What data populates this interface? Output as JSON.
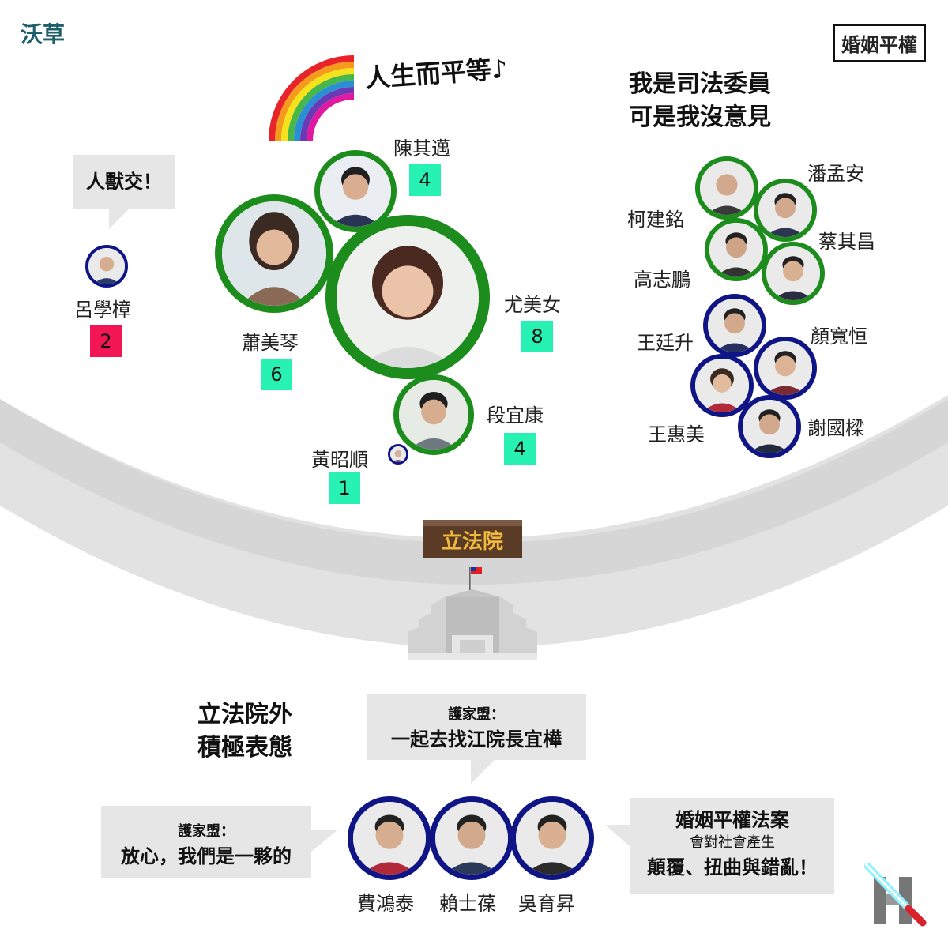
{
  "brand": "沃草",
  "topic": "婚姻平權",
  "rainbow_caption": "人生而平等♪",
  "judiciary_title": [
    "我是司法委員",
    "可是我沒意見"
  ],
  "outside_title": [
    "立法院外",
    "積極表態"
  ],
  "building_sign": "立法院",
  "lu_bubble": "人獸交！",
  "legislators": {
    "chen_qimai": {
      "name": "陳其邁",
      "count": "4"
    },
    "xiao_meiqin": {
      "name": "蕭美琴",
      "count": "6"
    },
    "you_meinu": {
      "name": "尤美女",
      "count": "8"
    },
    "duan_yikang": {
      "name": "段宜康",
      "count": "4"
    },
    "huang_zhaoshun": {
      "name": "黃昭順",
      "count": "1"
    },
    "lu_xuezhang": {
      "name": "呂學樟",
      "count": "2"
    }
  },
  "judiciary_members": {
    "pan_mengan": "潘孟安",
    "ke_jianming": "柯建銘",
    "cai_qichang": "蔡其昌",
    "gao_zhipeng": "高志鵬",
    "wang_tingsheng": "王廷升",
    "yan_kuanheng": "顏寬恒",
    "wang_huimei": "王惠美",
    "xie_guoliang": "謝國樑"
  },
  "outside_members": {
    "fei_hongtai": "費鴻泰",
    "lai_shibao": "賴士葆",
    "wu_yusheng": "吳育昇"
  },
  "bubbles": {
    "center": {
      "speaker": "護家盟：",
      "text": "一起去找江院長宜樺"
    },
    "left": {
      "speaker": "護家盟：",
      "text": "放心，我們是一夥的"
    },
    "right": {
      "line1": "婚姻平權法案",
      "line2": "會對社會產生",
      "line3": "顛覆、扭曲與錯亂！"
    }
  },
  "colors": {
    "dpp_green": "#1c8c1c",
    "kmt_navy": "#101585",
    "count_teal": "#27f2b4",
    "count_pink": "#f21654",
    "bubble_gray": "#e6e6e6",
    "brand_teal": "#1f5f6b"
  },
  "icons": [
    "rainbow-icon",
    "flag-icon",
    "building-icon",
    "lightsaber-logo-icon"
  ]
}
